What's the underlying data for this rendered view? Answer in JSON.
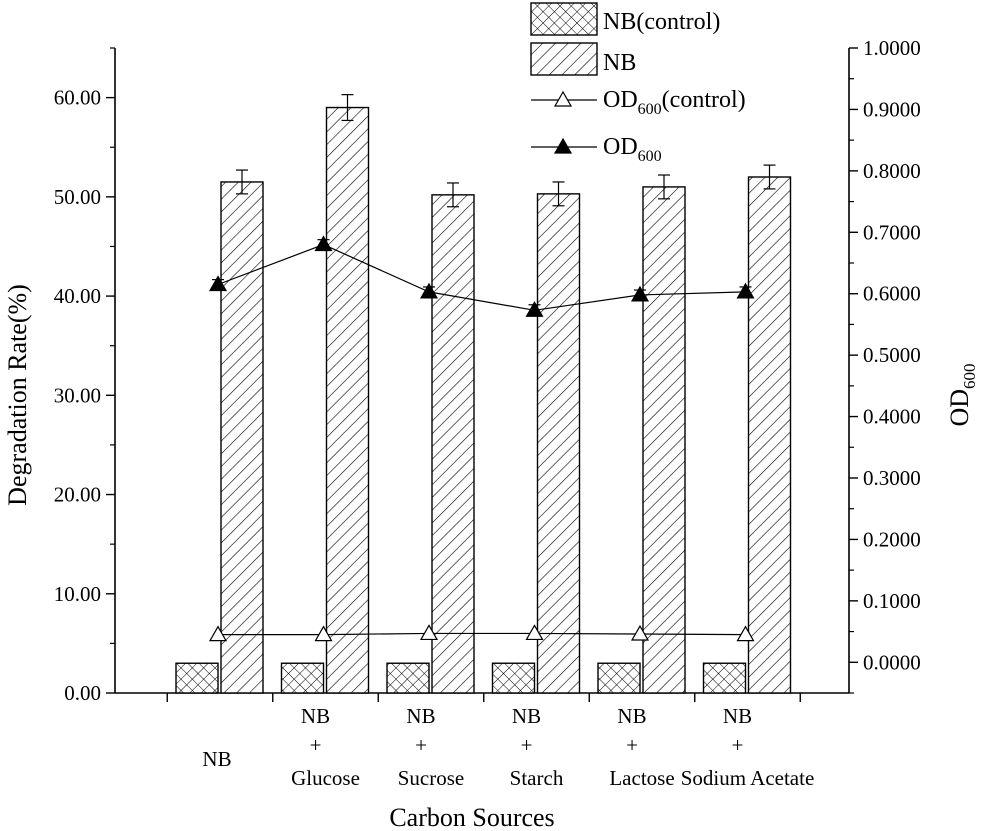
{
  "chart_data": {
    "type": "bar",
    "xlabel": "Carbon Sources",
    "ylabel": "Degradation Rate(%)",
    "y2label": {
      "main": "OD",
      "sub": "600"
    },
    "categories": [
      [
        "NB"
      ],
      [
        "NB",
        "+",
        "Glucose"
      ],
      [
        "NB",
        "+",
        "Sucrose"
      ],
      [
        "NB",
        "+",
        "Starch"
      ],
      [
        "NB",
        "+",
        "Lactose"
      ],
      [
        "NB",
        "+",
        "Sodium Acetate"
      ]
    ],
    "ylim": [
      0,
      65
    ],
    "y2lim": [
      -0.05,
      1.0
    ],
    "yticks": [
      "0.00",
      "10.00",
      "20.00",
      "30.00",
      "40.00",
      "50.00",
      "60.00"
    ],
    "y2ticks": [
      "0.0000",
      "0.1000",
      "0.2000",
      "0.3000",
      "0.4000",
      "0.5000",
      "0.6000",
      "0.7000",
      "0.8000",
      "0.9000",
      "1.0000"
    ],
    "series": [
      {
        "name": "NB(control)",
        "kind": "bar",
        "pattern": "crosshatch",
        "axis": "left",
        "values": [
          3.0,
          3.0,
          3.0,
          3.0,
          3.0,
          3.0
        ]
      },
      {
        "name": "NB",
        "kind": "bar",
        "pattern": "diagonal",
        "axis": "left",
        "values": [
          51.5,
          59.0,
          50.2,
          50.3,
          51.0,
          52.0
        ],
        "errors": [
          1.2,
          1.3,
          1.2,
          1.2,
          1.2,
          1.2
        ]
      },
      {
        "name": {
          "main": "OD",
          "sub": "600",
          "suffix": "(control)"
        },
        "kind": "line",
        "marker": "triangle-open",
        "axis": "right",
        "values": [
          0.045,
          0.045,
          0.047,
          0.047,
          0.046,
          0.045
        ]
      },
      {
        "name": {
          "main": "OD",
          "sub": "600",
          "suffix": ""
        },
        "kind": "line",
        "marker": "triangle-filled",
        "axis": "right",
        "values": [
          0.615,
          0.68,
          0.603,
          0.573,
          0.598,
          0.603
        ],
        "errors": [
          0.008,
          0.008,
          0.008,
          0.009,
          0.008,
          0.008
        ]
      }
    ],
    "grid": false,
    "legend_position": "top-right"
  }
}
